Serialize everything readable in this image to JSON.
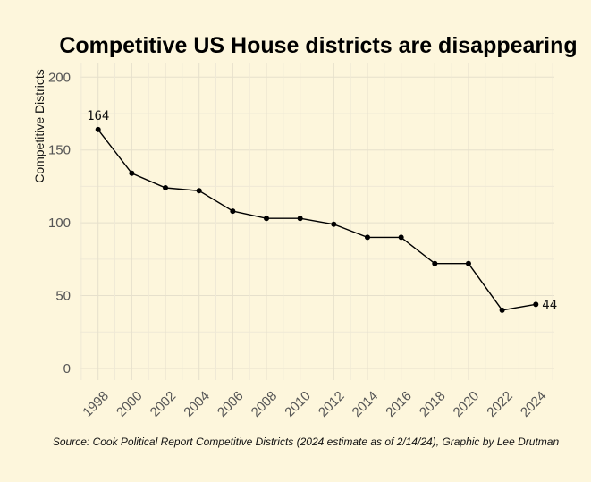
{
  "chart_data": {
    "type": "line",
    "title": "Competitive US House districts are disappearing",
    "xlabel": "",
    "ylabel": "Competitive Districts",
    "x": [
      1998,
      2000,
      2002,
      2004,
      2006,
      2008,
      2010,
      2012,
      2014,
      2016,
      2018,
      2020,
      2022,
      2024
    ],
    "xticks": [
      "1998",
      "2000",
      "2002",
      "2004",
      "2006",
      "2008",
      "2010",
      "2012",
      "2014",
      "2016",
      "2018",
      "2020",
      "2022",
      "2024"
    ],
    "values": [
      164,
      134,
      124,
      122,
      108,
      103,
      103,
      99,
      90,
      90,
      72,
      72,
      40,
      44
    ],
    "yticks": [
      "0",
      "50",
      "100",
      "150",
      "200"
    ],
    "ytick_values": [
      0,
      50,
      100,
      150,
      200
    ],
    "ylim": [
      -8,
      210
    ],
    "grid": true,
    "data_labels": [
      {
        "index": 0,
        "text": "164"
      },
      {
        "index": 13,
        "text": "44"
      }
    ],
    "caption": "Source: Cook Political Report Competitive Districts (2024 estimate as of 2/14/24), Graphic by Lee Drutman"
  }
}
